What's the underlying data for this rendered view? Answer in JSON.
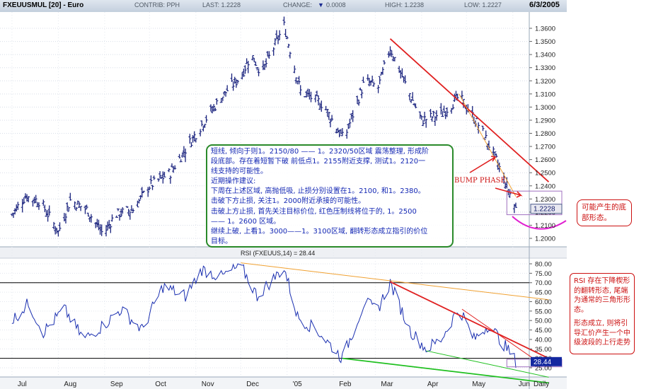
{
  "header": {
    "title": "FXEUUSMUL [20] - Euro",
    "contrib": "CONTRIB: PPH",
    "last": "LAST: 1.2228",
    "change_label": "CHANGE:",
    "change_arrow": "▼",
    "change_value": "0.0008",
    "high": "HIGH: 1.2238",
    "low": "LOW: 1.2227",
    "date": "6/3/2005"
  },
  "annotations": {
    "commentary_lines": [
      "短线, 倾向于则1。2150/80 —— 1。2320/50区域 震荡整理, 形成阶",
      "段底部。存在着短暂下破 前低点1。2155附近支撑, 测试1。2120一",
      "线支持的可能性。",
      "近期操作建议:",
      "下周在上述区域, 高抛低吸, 止损分别设置在1。2100, 和1。2380。",
      "击破下方止损, 关注1。2000附近承接的可能性。",
      "击破上方止损, 首先关注目标价位, 红色压制线将位于的, 1。2500",
      "—— 1。2600 区域。",
      "继续上破, 上看1。3000——1。3100区域, 翻转形态成立指引的价位",
      "目标。"
    ],
    "bottom_note": "可能产生的底部形态。",
    "bump_label": "BUMP PHASE",
    "rsi_note_1": "RSI 存在下降楔形的翻转形态, 尾端为通常的三角形形态。",
    "rsi_note_2": "形态成立, 则将引导汇价产生一个中级波段的上行走势"
  },
  "chart_data": [
    {
      "type": "ohlc",
      "title": "FXEUUSMUL [20] - Euro",
      "y_ticks": [
        "1.3600",
        "1.3500",
        "1.3400",
        "1.3300",
        "1.3200",
        "1.3100",
        "1.3000",
        "1.2900",
        "1.2800",
        "1.2700",
        "1.2600",
        "1.2500",
        "1.2400",
        "1.2300",
        "1.2200",
        "1.2100",
        "1.2000"
      ],
      "ylim": [
        1.196,
        1.368
      ],
      "x_labels": [
        "Jul",
        "Aug",
        "Sep",
        "Oct",
        "Nov",
        "Dec",
        "'05",
        "Feb",
        "Mar",
        "Apr",
        "May",
        "Jun"
      ],
      "x_scale_label": "Daily",
      "last_price_label": "1.2228",
      "colors": {
        "bars": "#1a237e",
        "trendline": "#e02020",
        "fan_line": "#f0a030",
        "current_box": "#e8e8f0"
      },
      "price_path": [
        {
          "date": "2004-07-01",
          "close": 1.218
        },
        {
          "date": "2004-07-10",
          "close": 1.232
        },
        {
          "date": "2004-07-20",
          "close": 1.228
        },
        {
          "date": "2004-08-01",
          "close": 1.205
        },
        {
          "date": "2004-08-09",
          "close": 1.229
        },
        {
          "date": "2004-08-20",
          "close": 1.222
        },
        {
          "date": "2004-08-31",
          "close": 1.203
        },
        {
          "date": "2004-09-08",
          "close": 1.218
        },
        {
          "date": "2004-09-20",
          "close": 1.222
        },
        {
          "date": "2004-10-01",
          "close": 1.24
        },
        {
          "date": "2004-10-15",
          "close": 1.25
        },
        {
          "date": "2004-10-28",
          "close": 1.273
        },
        {
          "date": "2004-11-10",
          "close": 1.295
        },
        {
          "date": "2004-11-22",
          "close": 1.313
        },
        {
          "date": "2004-12-01",
          "close": 1.323
        },
        {
          "date": "2004-12-08",
          "close": 1.34
        },
        {
          "date": "2004-12-15",
          "close": 1.326
        },
        {
          "date": "2004-12-30",
          "close": 1.362
        },
        {
          "date": "2005-01-10",
          "close": 1.312
        },
        {
          "date": "2005-01-25",
          "close": 1.302
        },
        {
          "date": "2005-02-08",
          "close": 1.275
        },
        {
          "date": "2005-02-22",
          "close": 1.32
        },
        {
          "date": "2005-03-03",
          "close": 1.315
        },
        {
          "date": "2005-03-11",
          "close": 1.345
        },
        {
          "date": "2005-03-22",
          "close": 1.315
        },
        {
          "date": "2005-04-01",
          "close": 1.29
        },
        {
          "date": "2005-04-15",
          "close": 1.295
        },
        {
          "date": "2005-04-26",
          "close": 1.308
        },
        {
          "date": "2005-05-10",
          "close": 1.285
        },
        {
          "date": "2005-05-20",
          "close": 1.262
        },
        {
          "date": "2005-06-03",
          "close": 1.2228
        }
      ]
    },
    {
      "type": "line",
      "title": "RSI (FXEUUS,14) = 28.44",
      "y_ticks": [
        "80.00",
        "75.00",
        "70.00",
        "65.00",
        "60.00",
        "55.00",
        "50.00",
        "45.00",
        "40.00",
        "35.00",
        "30.00",
        "25.00"
      ],
      "ylim": [
        21,
        81
      ],
      "reference_lines": [
        70,
        30
      ],
      "last_value_label": "28.44",
      "colors": {
        "line": "#1a2fb0",
        "upper_wedge": "#e02020",
        "lower_wedge": "#20c020",
        "fan_line": "#f0a030"
      },
      "rsi_path": [
        {
          "date": "2004-07-01",
          "value": 50
        },
        {
          "date": "2004-07-12",
          "value": 59
        },
        {
          "date": "2004-07-22",
          "value": 44
        },
        {
          "date": "2004-08-05",
          "value": 56
        },
        {
          "date": "2004-08-18",
          "value": 40
        },
        {
          "date": "2004-09-01",
          "value": 48
        },
        {
          "date": "2004-09-12",
          "value": 56
        },
        {
          "date": "2004-09-26",
          "value": 45
        },
        {
          "date": "2004-10-10",
          "value": 68
        },
        {
          "date": "2004-10-25",
          "value": 63
        },
        {
          "date": "2004-11-05",
          "value": 77
        },
        {
          "date": "2004-11-18",
          "value": 73
        },
        {
          "date": "2004-12-01",
          "value": 79
        },
        {
          "date": "2004-12-12",
          "value": 63
        },
        {
          "date": "2004-12-30",
          "value": 78
        },
        {
          "date": "2005-01-08",
          "value": 52
        },
        {
          "date": "2005-01-22",
          "value": 44
        },
        {
          "date": "2005-02-07",
          "value": 30
        },
        {
          "date": "2005-02-22",
          "value": 60
        },
        {
          "date": "2005-03-02",
          "value": 55
        },
        {
          "date": "2005-03-11",
          "value": 70
        },
        {
          "date": "2005-03-24",
          "value": 45
        },
        {
          "date": "2005-04-04",
          "value": 35
        },
        {
          "date": "2005-04-14",
          "value": 40
        },
        {
          "date": "2005-04-26",
          "value": 57
        },
        {
          "date": "2005-05-06",
          "value": 40
        },
        {
          "date": "2005-05-16",
          "value": 48
        },
        {
          "date": "2005-05-30",
          "value": 33
        },
        {
          "date": "2005-06-03",
          "value": 28.44
        }
      ]
    }
  ]
}
